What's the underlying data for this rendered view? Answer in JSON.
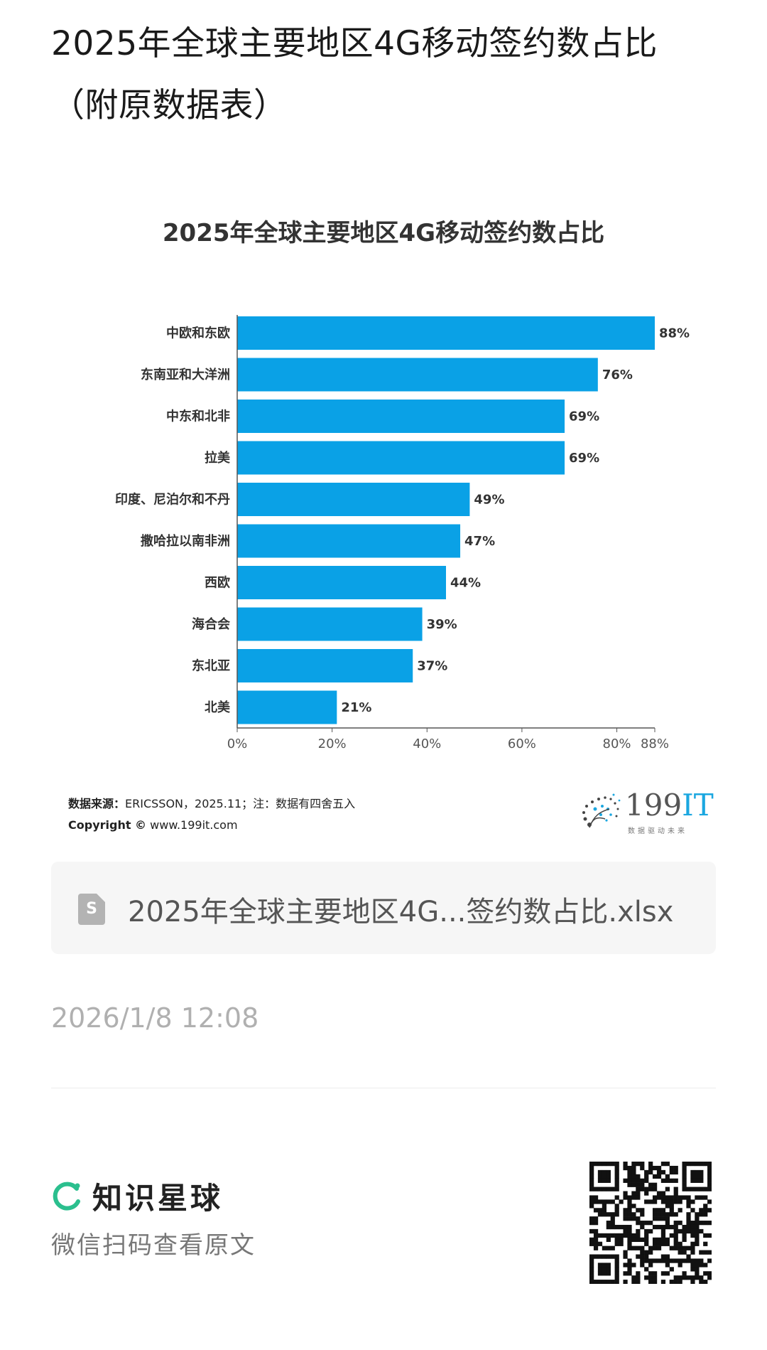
{
  "header": {
    "title_line1": "2025年全球主要地区4G移动签约数占比",
    "title_line2": "（附原数据表）"
  },
  "chart_data": {
    "type": "bar",
    "orientation": "horizontal",
    "title": "2025年全球主要地区4G移动签约数占比",
    "categories": [
      "中欧和东欧",
      "东南亚和大洋洲",
      "中东和北非",
      "拉美",
      "印度、尼泊尔和不丹",
      "撒哈拉以南非洲",
      "西欧",
      "海合会",
      "东北亚",
      "北美"
    ],
    "values": [
      88,
      76,
      69,
      69,
      49,
      47,
      44,
      39,
      37,
      21
    ],
    "value_labels": [
      "88%",
      "76%",
      "69%",
      "69%",
      "49%",
      "47%",
      "44%",
      "39%",
      "37%",
      "21%"
    ],
    "x_ticks": [
      0,
      20,
      40,
      60,
      80,
      88
    ],
    "x_tick_labels": [
      "0%",
      "20%",
      "40%",
      "60%",
      "80%",
      "88%"
    ],
    "xlim": [
      0,
      88
    ],
    "bar_color": "#0aa1e6",
    "grid": false,
    "legend": "none"
  },
  "source": {
    "label": "数据来源：",
    "text": "ERICSSON，2025.11；注：数据有四舍五入",
    "copyright_label": "Copyright ©",
    "copyright_site": "www.199it.com"
  },
  "logo": {
    "num": "199",
    "it": "IT",
    "sub": "数据驱动未来"
  },
  "file": {
    "icon_letter": "S",
    "name": "2025年全球主要地区4G...签约数占比.xlsx"
  },
  "timestamp": "2026/1/8 12:08",
  "footer": {
    "brand": "知识星球",
    "subtitle": "微信扫码查看原文"
  },
  "colors": {
    "accent_bar": "#0aa1e6",
    "brand_green": "#2bbf8e",
    "logo_blue": "#1ba7e0"
  }
}
